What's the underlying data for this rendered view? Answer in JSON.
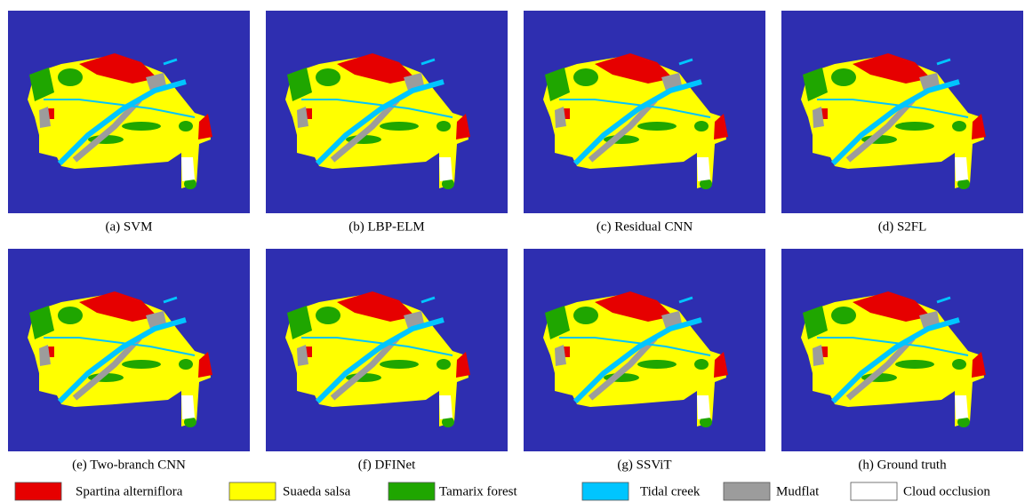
{
  "panels": [
    {
      "caption": "(a) SVM"
    },
    {
      "caption": "(b) LBP-ELM"
    },
    {
      "caption": "(c) Residual CNN"
    },
    {
      "caption": "(d) S2FL"
    },
    {
      "caption": "(e) Two-branch CNN"
    },
    {
      "caption": "(f) DFINet"
    },
    {
      "caption": "(g) SSViT"
    },
    {
      "caption": "(h) Ground truth"
    }
  ],
  "legend": [
    {
      "label": "Spartina alterniflora",
      "color": "#e60000"
    },
    {
      "label": "Suaeda salsa",
      "color": "#ffff00"
    },
    {
      "label": "Tamarix forest",
      "color": "#1fa600"
    },
    {
      "label": "Tidal creek",
      "color": "#00c5ff"
    },
    {
      "label": "Mudflat",
      "color": "#9c9c9c"
    },
    {
      "label": "Cloud occlusion",
      "color": "#ffffff"
    }
  ]
}
